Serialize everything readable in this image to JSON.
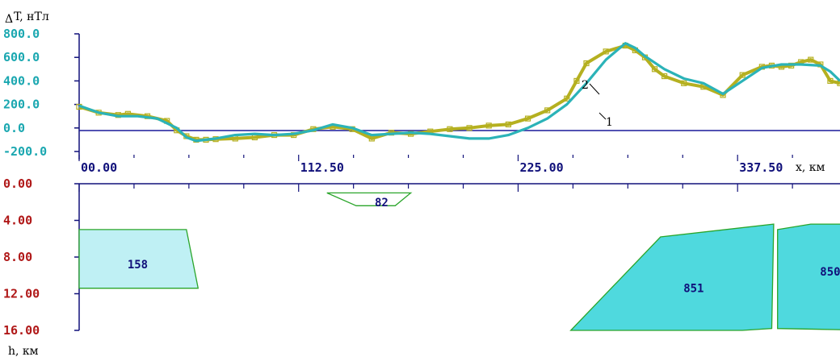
{
  "chart_data": [
    {
      "type": "line",
      "ylabel_prefix": "Δ",
      "ylabel": "T, нТл",
      "xlabel": "x, км",
      "xlim": [
        0,
        390
      ],
      "ylim": [
        -200,
        800
      ],
      "y_ticks": [
        "800.0",
        "600.0",
        "400.0",
        "200.0",
        "0.0",
        "-200.0"
      ],
      "y_tick_values": [
        800,
        600,
        400,
        200,
        0,
        -200
      ],
      "x_ticks": [
        "00.00",
        "112.50",
        "225.00",
        "337.50"
      ],
      "x_tick_values": [
        0,
        112.5,
        225,
        337.5
      ],
      "series": [
        {
          "name": "1",
          "color": "#b5b020",
          "marker": "square",
          "x": [
            0,
            10,
            20,
            25,
            35,
            45,
            50,
            55,
            60,
            65,
            70,
            80,
            90,
            100,
            110,
            120,
            130,
            140,
            150,
            160,
            170,
            180,
            190,
            200,
            210,
            220,
            230,
            240,
            250,
            255,
            260,
            270,
            280,
            285,
            290,
            295,
            300,
            310,
            320,
            330,
            340,
            350,
            355,
            360,
            365,
            370,
            375,
            380,
            385,
            390
          ],
          "values": [
            180,
            130,
            110,
            120,
            100,
            60,
            -20,
            -70,
            -100,
            -100,
            -95,
            -90,
            -80,
            -60,
            -60,
            -10,
            10,
            -10,
            -90,
            -40,
            -50,
            -30,
            -10,
            0,
            20,
            30,
            80,
            150,
            250,
            400,
            550,
            650,
            700,
            660,
            600,
            500,
            440,
            380,
            350,
            280,
            450,
            520,
            530,
            520,
            530,
            560,
            580,
            540,
            400,
            380
          ],
          "note": ""
        },
        {
          "name": "2",
          "color": "#2bb3b8",
          "marker": "none",
          "x": [
            0,
            10,
            20,
            30,
            40,
            50,
            55,
            60,
            65,
            70,
            80,
            90,
            100,
            110,
            120,
            130,
            140,
            150,
            160,
            170,
            180,
            190,
            200,
            210,
            220,
            230,
            240,
            250,
            260,
            270,
            280,
            285,
            290,
            300,
            310,
            320,
            330,
            340,
            350,
            360,
            370,
            380,
            385,
            390
          ],
          "values": [
            190,
            130,
            100,
            100,
            80,
            0,
            -80,
            -110,
            -100,
            -90,
            -60,
            -50,
            -60,
            -50,
            -20,
            30,
            0,
            -60,
            -50,
            -40,
            -50,
            -70,
            -90,
            -90,
            -60,
            0,
            80,
            200,
            380,
            580,
            720,
            680,
            610,
            500,
            420,
            380,
            290,
            400,
            510,
            540,
            540,
            530,
            480,
            400
          ],
          "note": ""
        }
      ]
    },
    {
      "type": "other",
      "ylabel": "h, км",
      "ylim": [
        0,
        16
      ],
      "y_ticks": [
        "0.00",
        "4.00",
        "8.00",
        "12.00",
        "16.00"
      ],
      "y_tick_values": [
        0,
        4,
        8,
        12,
        16
      ],
      "bodies": [
        {
          "label": "82",
          "points": [
            [
              127,
              1.0
            ],
            [
              170,
              1.0
            ],
            [
              162,
              2.4
            ],
            [
              142,
              2.4
            ]
          ],
          "fill": "#ffffff",
          "label_at": [
            155,
            2.0
          ]
        },
        {
          "label": "158",
          "points": [
            [
              0,
              5.0
            ],
            [
              55,
              5.0
            ],
            [
              61,
              11.4
            ],
            [
              0,
              11.4
            ]
          ],
          "fill": "#bff0f4",
          "label_at": [
            30,
            8.8
          ]
        },
        {
          "label": "851",
          "points": [
            [
              252,
              16.0
            ],
            [
              298,
              5.8
            ],
            [
              356,
              4.4
            ],
            [
              355,
              15.8
            ],
            [
              340,
              16.0
            ]
          ],
          "fill": "#4fd9de",
          "label_at": [
            315,
            11.4
          ]
        },
        {
          "label": "850",
          "points": [
            [
              358,
              5.0
            ],
            [
              375,
              4.4
            ],
            [
              410,
              4.4
            ],
            [
              410,
              16.0
            ],
            [
              358,
              15.8
            ]
          ],
          "fill": "#4fd9de",
          "label_at": [
            385,
            9.6
          ]
        }
      ]
    }
  ],
  "curve_labels": {
    "one": "1",
    "two": "2"
  },
  "colors": {
    "axis_top": "#10107a",
    "axis_bottom": "#10107a",
    "zero_line": "#1a1a9a",
    "body_stroke": "#2aa52a",
    "top_ticks": "#1aa7b0",
    "bottom_ticks": "#b01818"
  }
}
